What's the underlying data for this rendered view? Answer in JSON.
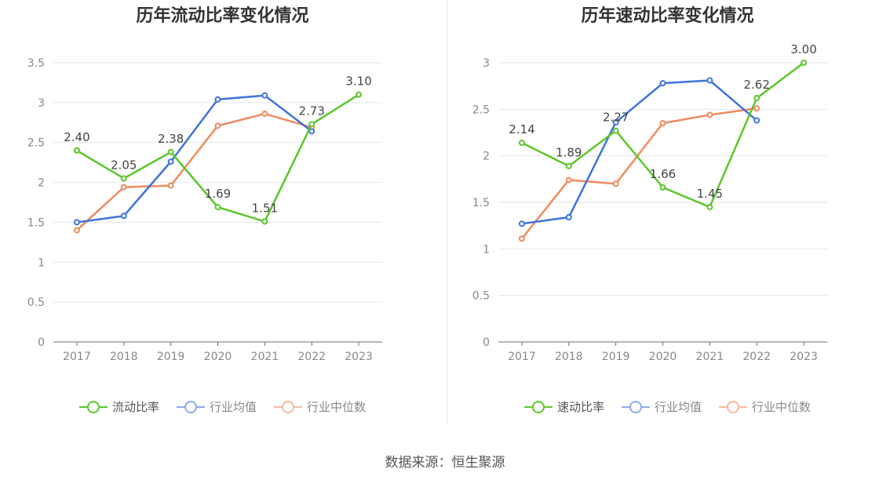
{
  "charts": [
    {
      "title": "历年流动比率变化情况",
      "legend": [
        {
          "label": "流动比率",
          "color": "#5bc62a",
          "active": true
        },
        {
          "label": "行业均值",
          "color": "#3d74db",
          "active": false
        },
        {
          "label": "行业中位数",
          "color": "#f08a5d",
          "active": false
        }
      ]
    },
    {
      "title": "历年速动比率变化情况",
      "legend": [
        {
          "label": "速动比率",
          "color": "#5bc62a",
          "active": true
        },
        {
          "label": "行业均值",
          "color": "#3d74db",
          "active": false
        },
        {
          "label": "行业中位数",
          "color": "#f08a5d",
          "active": false
        }
      ]
    }
  ],
  "source": "数据来源：恒生聚源",
  "chart_data": [
    {
      "type": "line",
      "title": "历年流动比率变化情况",
      "categories": [
        "2017",
        "2018",
        "2019",
        "2020",
        "2021",
        "2022",
        "2023"
      ],
      "ylim": [
        0,
        3.5
      ],
      "yticks": [
        "0",
        "0.5",
        "1",
        "1.5",
        "2",
        "2.5",
        "3",
        "3.5"
      ],
      "grid": true,
      "legend_position": "bottom",
      "series": [
        {
          "name": "流动比率",
          "color": "#5bc62a",
          "values": [
            2.4,
            2.05,
            2.38,
            1.69,
            1.51,
            2.73,
            3.1
          ],
          "labels": [
            "2.40",
            "2.05",
            "2.38",
            "1.69",
            "1.51",
            "2.73",
            "3.10"
          ]
        },
        {
          "name": "行业均值",
          "color": "#3d74db",
          "values": [
            1.5,
            1.58,
            2.26,
            3.04,
            3.09,
            2.64,
            null
          ]
        },
        {
          "name": "行业中位数",
          "color": "#f08a5d",
          "values": [
            1.4,
            1.94,
            1.96,
            2.71,
            2.86,
            2.69,
            null
          ]
        }
      ]
    },
    {
      "type": "line",
      "title": "历年速动比率变化情况",
      "categories": [
        "2017",
        "2018",
        "2019",
        "2020",
        "2021",
        "2022",
        "2023"
      ],
      "ylim": [
        0,
        3
      ],
      "yticks": [
        "0",
        "0.5",
        "1",
        "1.5",
        "2",
        "2.5",
        "3"
      ],
      "grid": true,
      "legend_position": "bottom",
      "series": [
        {
          "name": "速动比率",
          "color": "#5bc62a",
          "values": [
            2.14,
            1.89,
            2.27,
            1.66,
            1.45,
            2.62,
            3.0
          ],
          "labels": [
            "2.14",
            "1.89",
            "2.27",
            "1.66",
            "1.45",
            "2.62",
            "3.00"
          ]
        },
        {
          "name": "行业均值",
          "color": "#3d74db",
          "values": [
            1.27,
            1.34,
            2.36,
            2.78,
            2.81,
            2.38,
            null
          ]
        },
        {
          "name": "行业中位数",
          "color": "#f08a5d",
          "values": [
            1.11,
            1.74,
            1.7,
            2.35,
            2.44,
            2.51,
            null
          ]
        }
      ]
    }
  ]
}
